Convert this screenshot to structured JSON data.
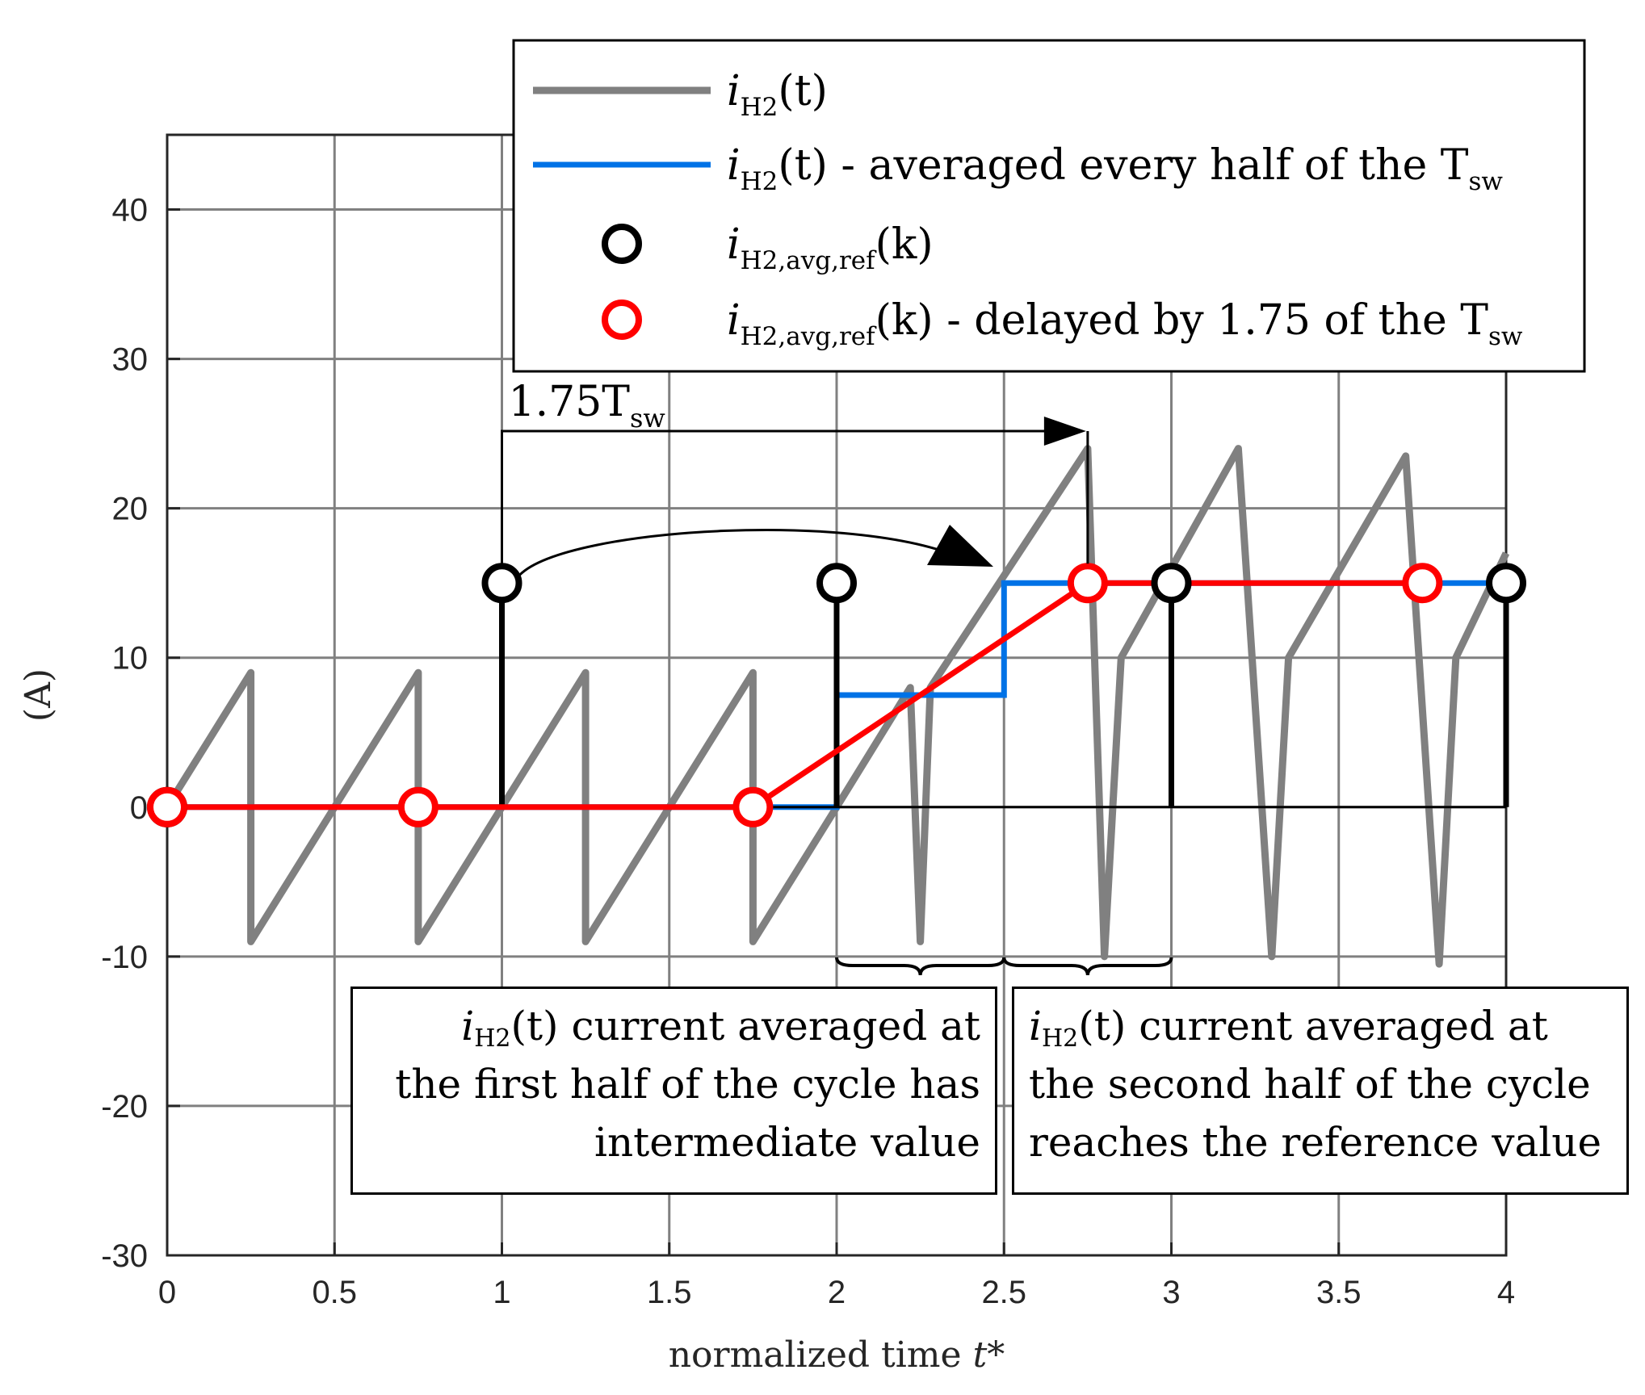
{
  "chart_data": {
    "type": "line",
    "xlabel": "normalized time",
    "xlabel_symbol": "t*",
    "ylabel": "(A)",
    "xlim": [
      0,
      4
    ],
    "ylim": [
      -30,
      45
    ],
    "xticks": [
      "0",
      "0.5",
      "1",
      "1.5",
      "2",
      "2.5",
      "3",
      "3.5",
      "4"
    ],
    "yticks": [
      "-30",
      "-20",
      "-10",
      "0",
      "10",
      "20",
      "30",
      "40"
    ],
    "grid": true,
    "colors": {
      "ih2": "#808080",
      "averaged": "#0072e6",
      "ref": "#000000",
      "delayed": "#ff0000"
    },
    "series": [
      {
        "name": "iH2(t)",
        "kind": "line",
        "x": [
          0,
          0.25,
          0.25,
          0.5,
          0.75,
          0.75,
          1.0,
          1.25,
          1.25,
          1.5,
          1.75,
          1.75,
          2.0,
          2.22,
          2.25,
          2.28,
          2.75,
          2.8,
          2.8,
          2.85,
          3.2,
          3.3,
          3.3,
          3.35,
          3.7,
          3.8,
          3.8,
          3.85,
          4.0
        ],
        "y": [
          0,
          9,
          -9,
          0,
          9,
          -9,
          0,
          9,
          -9,
          0,
          9,
          -9,
          0,
          8,
          -9,
          8,
          24,
          -10,
          -10,
          10,
          24,
          -10,
          -10,
          10,
          23.5,
          -10.5,
          -10.5,
          10,
          17
        ]
      },
      {
        "name": "iH2(t) - averaged every half of the Tsw",
        "kind": "line",
        "x": [
          0,
          2,
          2,
          2.5,
          2.5,
          3,
          4
        ],
        "y": [
          0,
          0,
          7.5,
          7.5,
          15,
          15,
          15
        ]
      },
      {
        "name": "iH2,avg,ref(k)",
        "kind": "stem",
        "x": [
          0,
          1,
          2,
          3,
          4
        ],
        "y": [
          0,
          15,
          15,
          15,
          15
        ]
      },
      {
        "name": "iH2,avg,ref(k) - delayed by 1.75 of the Tsw",
        "kind": "line-markers",
        "x": [
          0,
          0.75,
          1.75,
          2.75,
          3.75
        ],
        "y": [
          0,
          0,
          0,
          15,
          15
        ]
      }
    ],
    "legend": {
      "position": "top-right",
      "entries": [
        {
          "main": "i",
          "sub": "H2",
          "rest": "(t)"
        },
        {
          "main": "i",
          "sub": "H2",
          "rest": "(t) - averaged every half of the T",
          "tail_sub": "sw"
        },
        {
          "main": "i",
          "sub": "H2,avg,ref",
          "rest": "(k)"
        },
        {
          "main": "i",
          "sub": "H2,avg,ref",
          "rest": "(k) - delayed by 1.75 of the T",
          "tail_sub": "sw"
        }
      ]
    },
    "annotations": {
      "delay_label": {
        "main": "1.75T",
        "sub": "sw"
      },
      "delay_from": 1,
      "delay_to": 2.75,
      "brace_1": [
        2,
        2.5
      ],
      "brace_2": [
        2.5,
        3
      ],
      "box_1": {
        "line1_rest": "current averaged at",
        "line2": "the first half of the cycle has",
        "line3": "intermediate value"
      },
      "box_2": {
        "line1_rest": "current averaged at",
        "line2": "the second half of the cycle",
        "line3": "reaches the reference value"
      },
      "box_symbol": {
        "main": "i",
        "sub": "H2",
        "rest": "(t)"
      }
    }
  }
}
